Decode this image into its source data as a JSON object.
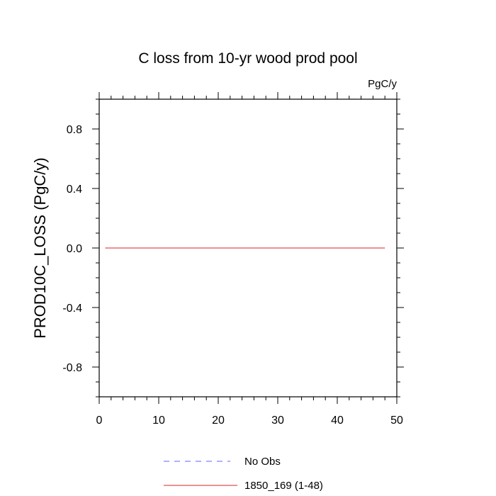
{
  "chart_data": {
    "type": "line",
    "title": "C loss from 10-yr wood prod pool",
    "units": "PgC/y",
    "xlabel": "",
    "ylabel": "PROD10C_LOSS  (PgC/y)",
    "xlim": [
      0,
      50
    ],
    "ylim": [
      -1,
      1
    ],
    "x_ticks": [
      "0",
      "10",
      "20",
      "30",
      "40",
      "50"
    ],
    "y_ticks": [
      "0.8",
      "0.4",
      "0.0",
      "-0.4",
      "-0.8"
    ],
    "y_tick_values": [
      0.8,
      0.4,
      0.0,
      -0.4,
      -0.8
    ],
    "x_tick_values": [
      0,
      10,
      20,
      30,
      40,
      50
    ],
    "grid": false,
    "legend_position": "bottom",
    "series": [
      {
        "name": "No Obs",
        "color": "#8080ff",
        "style": "dashed",
        "x": [],
        "y": []
      },
      {
        "name": "1850_169 (1-48)",
        "color": "#e05050",
        "style": "solid",
        "x": [
          1,
          48
        ],
        "y": [
          0.0,
          0.0
        ]
      }
    ]
  }
}
